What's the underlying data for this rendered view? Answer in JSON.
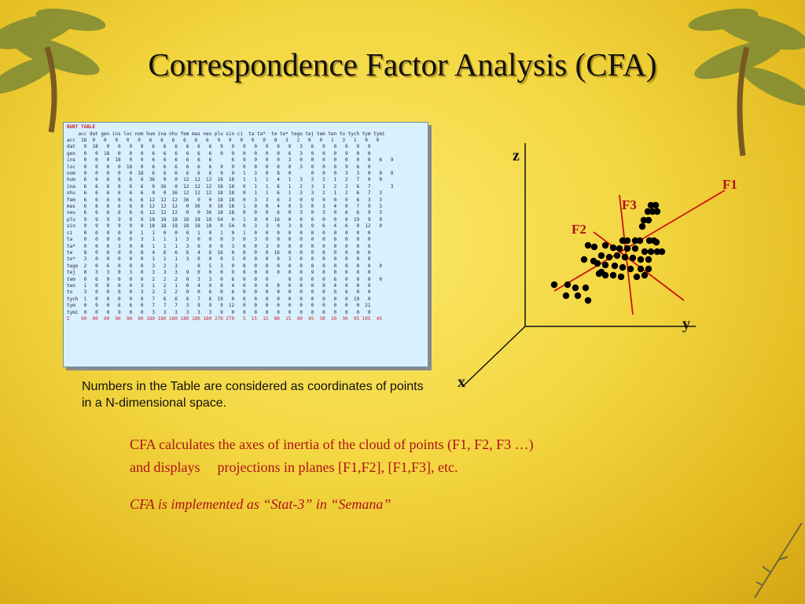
{
  "slide": {
    "title": "Correspondence Factor Analysis (CFA)",
    "note": "Numbers in the Table are considered as coordinates of points in a N-dimensional space.",
    "para1_line1": "CFA calculates the axes of inertia of the cloud of points (F1, F2, F3 …)",
    "para1_line2a": "and displays",
    "para1_line2b": "projections in planes [F1,F2], [F1,F3], etc.",
    "para2": "CFA is implemented as “Stat-3” in “Semana”"
  },
  "burt_table": {
    "title": "BURT TABLE",
    "columns": "    acc dat gen ins loc nom hum ina nhu fem mas neu plu sin ci  ta ta*  te te* tego tej tem ten to tych tym tymi",
    "rows": [
      "acc  18  0   0   0   0   0   6   6   6   6   6   6   9   9   0   0   0   8   3   2   0   0   1   3   1   0   0",
      "dat   0  18   0   0   0   0   6   6   6   6   6   6   9   9   0   0   0   0   0   3   6   0   0   0   9   0",
      "gen   0   0  18   0   0   0   6   6   6   6   6   6   9   9   0   0   0   0   6   3   0   0   0   9   0   0",
      "ins   0   0   0  18   0   0   6   6   6   6   6   6       6   9   9   0   0   3   0   0   0   0   0   0   0   6   9",
      "loc   0   0   0   0  18   0   6   6   6   6   6   6   9   9   0   0   0   0   0   3   0   0   0   9   6   0",
      "nom   0   0   0   0   0  18   6   6   6   6   6   6   9   9   1   3   0   8   0       0   0   0   3   3   0   0   0",
      "hum   6   6   6   6   6   6  36   0   0  12  12  12  18  18   1   1   1   4   1   3   3   2   1   2   7   0   0",
      "ina   6   6   6   6   6   6   0  36   0  12  12  12  18  18   0   1   1   6   1   2   3   2   2   2   6   7       3",
      "nhu   6   6   6   6   6   6   0   0  36  12  12  12  18  18   0   1   1   6   1   3   3   2   1   2   6   7   3",
      "fem   6   6   6   6   6   6  12  12  12  36   0   0  18  18   0   3   3   6   3   0   9   0   0   0   6   3   3",
      "mas   6   6   6   6   6   6  12  12  12   0  36   0  18  18   1   0   0   4   0   5   0   3   4   0   7   9   3",
      "neu   6   6   6   6   6   6  12  12  12   0   0  36  18  18   0   0   0   6   0   3   0   3   0   6   6   9   3",
      "plu   9   9   9   9   9   9  18  18  18  18  18  18  54   0   1   0   0  16   0   0   0   0   0   0  19   9   9",
      "sin   9   9   9   9   9   9  18  18  18  18  18  18   0  54   0   3   3   0   3   8   9   6   4   6   0  12   0",
      "ci    0   0   0   0   0   1   1   0   0   0   1   0   1   0   1   0   0   0   0   0   0   0   0   0   0   0",
      "ta    0   0   0   0   0   3   1   1   1   3   0   0   0   3   0   3   0   0   0   0   0   0   0   0   0   0",
      "ta*   0   0   0   3   0   0   1   1   1   3   0   0   0   3   0   0   3   0   0   0   0   0   0   0   0   0",
      "te    8   0   0   0   0   8   4   6   6   6   4   6  16   0   0   0   0  16   0   0   0   0   0   0   0   0",
      "te*   3   0   0   0   0   0   1   1   1   3   0   0   0   3   0   0   0   0   3   0   0   0   0   0   0   0",
      "tego  2   0   6   0   0   0   3   2   3       0   5   3   0   8   0   0   0   0   0   8   0   0   0   0   0   0",
      "tej   0   3   3   0   3   0   3   3   3   9   0   0   0   9   0   0   0   0   0   0   9   0   0   0   0   0",
      "tem   0   6   0   0   0   0   2   2   2   0   3   3   0   6   0   0   0       0   0   0   0   6   0   0   0   0",
      "ten   1   0   0   0   0   3   1   2   1   0   4   0   0   4   0   0   0   0   0   0   0   0   4   0   0   0",
      "to    3   0   0   0   0   3   2   2   2   0   0   6   0   6   0   0   0   0   0   0   0   0   0   6   0   0",
      "tych  1   0   9   0   9   0   7   6   6   6   7   6  19   0   0   0   0   0   0   0   0   0   0   0  19   0",
      "tym   0   9   0   6   6   0   7   7   7   3   9   9   9  12   0   0   0   0   0   0   0   0   0   0   0  21",
      "tymi  0   0   0   9   0   0   3   3   3   3   3   3   9   0   0   0   0   0   0   0   0   0   0   0   0   0",
      "Σ    90  90  90  90  90  90 180 180 180 180 180 180 270 270   5  15  15  80  15  40  45  30  20  30  95 105  45"
    ]
  },
  "plot": {
    "axes": {
      "x": "x",
      "y": "y",
      "z": "z"
    },
    "factors": {
      "f1": "F1",
      "f2": "F2",
      "f3": "F3"
    },
    "colors": {
      "factor_lines": "#cc1111",
      "axes": "#111111",
      "points": "#000000"
    }
  }
}
